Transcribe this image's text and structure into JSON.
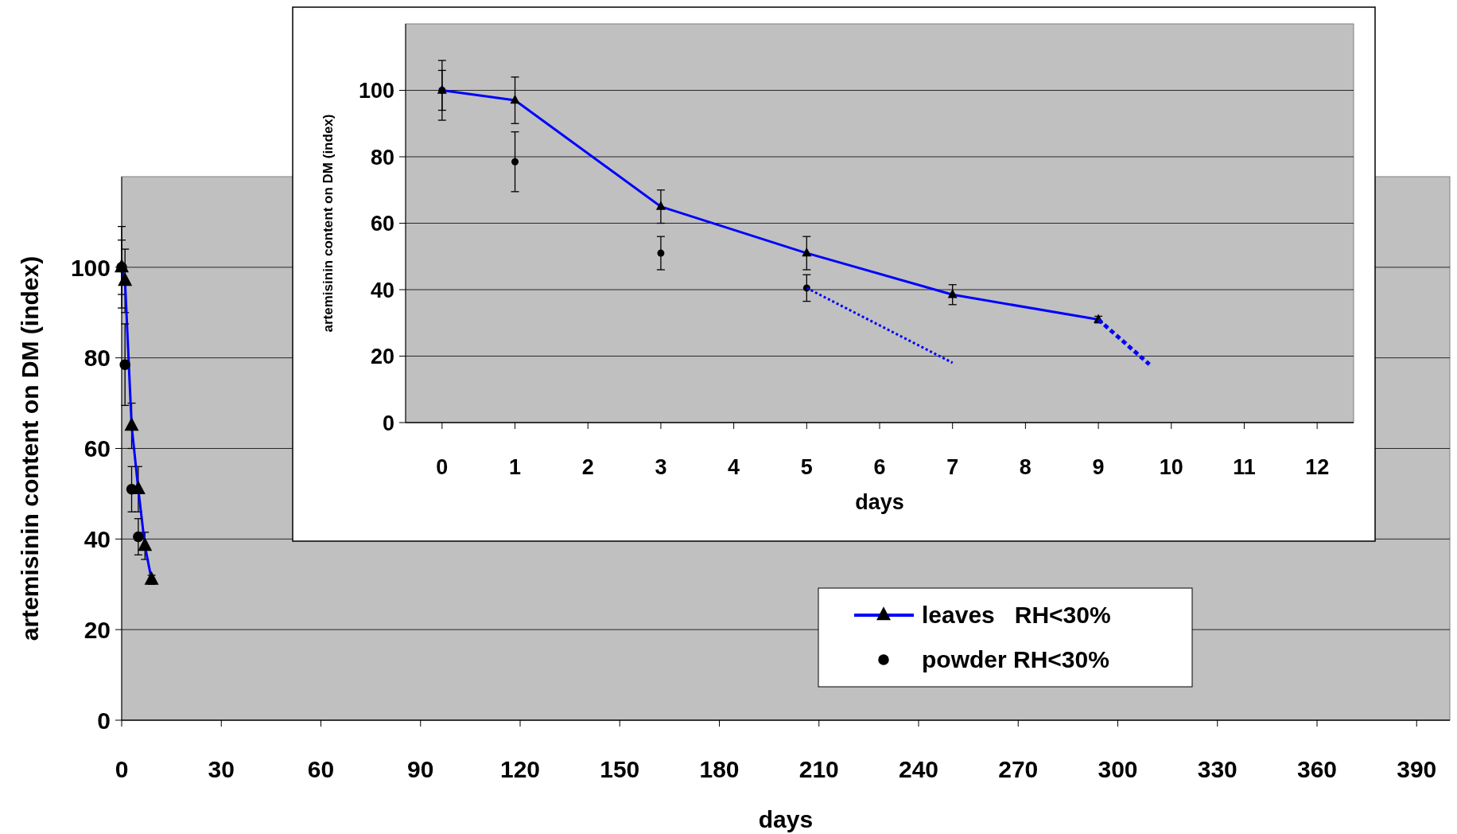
{
  "chart_data": [
    {
      "type": "line",
      "xlabel": "days",
      "ylabel": "artemisinin content on DM (index)",
      "xlim": [
        0,
        400
      ],
      "xticks": [
        0,
        30,
        60,
        90,
        120,
        150,
        180,
        210,
        240,
        270,
        300,
        330,
        360,
        390
      ],
      "ylim": [
        0,
        120
      ],
      "yticks": [
        0,
        20,
        40,
        60,
        80,
        100
      ],
      "grid": "y",
      "legend": "bottom right",
      "series": [
        {
          "name": "leaves   RH<30%",
          "type": "line",
          "color": "#0000ff",
          "marker": "triangle",
          "line_style": "solid",
          "x": [
            0,
            1,
            3,
            5,
            7,
            9
          ],
          "values": [
            100,
            97,
            65,
            51,
            38.5,
            31
          ],
          "errors": [
            6,
            7,
            5,
            5,
            3,
            1
          ]
        },
        {
          "name": "powder RH<30%",
          "type": "scatter",
          "color": "#000000",
          "marker": "circle",
          "x": [
            0,
            1,
            3,
            5
          ],
          "values": [
            100,
            78.5,
            51,
            40.5
          ],
          "errors": [
            9,
            9,
            5,
            4
          ]
        }
      ]
    },
    {
      "type": "line",
      "xlabel": "days",
      "ylabel": "artemisinin content on DM (index)",
      "xlim": [
        -0.5,
        12.5
      ],
      "xticks": [
        0,
        1,
        2,
        3,
        4,
        5,
        6,
        7,
        8,
        9,
        10,
        11,
        12
      ],
      "ylim": [
        0,
        120
      ],
      "yticks": [
        0,
        20,
        40,
        60,
        80,
        100
      ],
      "grid": "y",
      "legend": false,
      "series": [
        {
          "type": "line",
          "color": "#0000ff",
          "marker": "triangle",
          "line_style": "solid",
          "x": [
            0,
            1,
            3,
            5,
            7,
            9
          ],
          "values": [
            100,
            97,
            65,
            51,
            38.5,
            31
          ],
          "errors": [
            6,
            7,
            5,
            5,
            3,
            1
          ]
        },
        {
          "type": "scatter",
          "color": "#000000",
          "marker": "circle",
          "x": [
            0,
            1,
            3,
            5
          ],
          "values": [
            100,
            78.5,
            51,
            40.5
          ],
          "errors": [
            9,
            9,
            5,
            4
          ]
        },
        {
          "type": "line",
          "color": "#0000ff",
          "marker": "none",
          "line_style": "dotted",
          "x": [
            5,
            7
          ],
          "values": [
            40.5,
            18
          ]
        },
        {
          "type": "line",
          "color": "#0000ff",
          "marker": "none",
          "line_style": "dashed",
          "x": [
            9,
            9.7
          ],
          "values": [
            31,
            17.5
          ]
        }
      ]
    }
  ]
}
